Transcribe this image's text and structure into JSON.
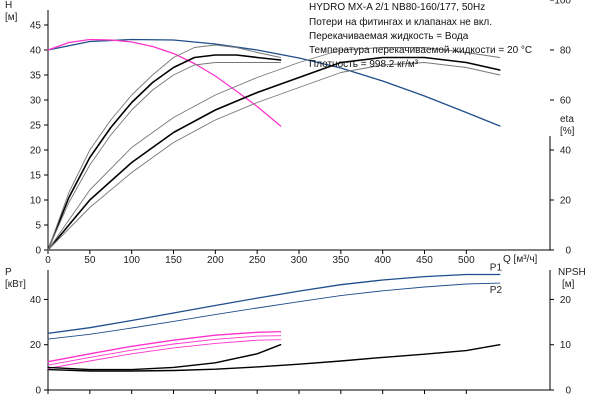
{
  "header": {
    "title": "HYDRO MX-A 2/1 NB80-160/177, 50Hz",
    "notes": [
      "Потери на фитингах и клапанах не вкл.",
      "Перекачиваемая жидкость = Вода",
      "Температура перекачиваемой жидкости = 20 °C",
      "Плотность = 998.2 кг/м³"
    ]
  },
  "colors": {
    "blue": "#1f4e8c",
    "magenta": "#ff33cc",
    "black": "#000000",
    "gray": "#777777"
  },
  "chart_data": [
    {
      "type": "line",
      "name": "top-panel",
      "x_label": "Q [м³/ч]",
      "x_ticks": [
        0,
        50,
        100,
        150,
        200,
        250,
        300,
        350,
        400,
        450,
        500
      ],
      "xlim": [
        0,
        600
      ],
      "left_axis": {
        "label_line1": "H",
        "label_line2": "[м]",
        "ticks": [
          0,
          5,
          10,
          15,
          20,
          25,
          30,
          35,
          40,
          45
        ],
        "lim": [
          0,
          50
        ]
      },
      "right_axis": {
        "label_line1": "eta",
        "label_line2": "[%]",
        "ticks": [
          0,
          20,
          40,
          60,
          80,
          100
        ],
        "lim": [
          0,
          100
        ]
      },
      "series": [
        {
          "axis": "left",
          "color": "blue",
          "width": 1.3,
          "x": [
            0,
            50,
            100,
            150,
            200,
            250,
            300,
            350,
            400,
            450,
            500,
            540
          ],
          "y": [
            40,
            41.7,
            42.1,
            42,
            41.2,
            40,
            38.4,
            36.4,
            33.8,
            30.8,
            27.5,
            24.8
          ]
        },
        {
          "axis": "left",
          "color": "magenta",
          "width": 1.3,
          "x": [
            0,
            25,
            50,
            75,
            100,
            125,
            150,
            175,
            200,
            225,
            250,
            278
          ],
          "y": [
            40,
            41.5,
            42.1,
            42,
            41.6,
            40.7,
            39.3,
            37.3,
            34.8,
            31.8,
            28.7,
            24.8
          ]
        },
        {
          "axis": "right",
          "color": "black",
          "width": 1.6,
          "x": [
            0,
            25,
            50,
            75,
            100,
            125,
            150,
            175,
            200,
            225,
            250,
            278
          ],
          "y": [
            0,
            21,
            37,
            49,
            59,
            67,
            73,
            77,
            78,
            78,
            77,
            76
          ]
        },
        {
          "axis": "right",
          "color": "gray",
          "width": 0.9,
          "x": [
            0,
            25,
            50,
            75,
            100,
            125,
            150,
            175,
            200,
            225,
            250,
            278
          ],
          "y": [
            0,
            23,
            40,
            52,
            62,
            70,
            77,
            81,
            82,
            81,
            79,
            77
          ]
        },
        {
          "axis": "right",
          "color": "gray",
          "width": 0.9,
          "x": [
            0,
            25,
            50,
            75,
            100,
            125,
            150,
            175,
            200,
            225,
            250,
            278
          ],
          "y": [
            0,
            19,
            34,
            46,
            56,
            64,
            70,
            74,
            75,
            75,
            75,
            75
          ]
        },
        {
          "axis": "right",
          "color": "black",
          "width": 1.6,
          "x": [
            0,
            50,
            100,
            150,
            200,
            250,
            300,
            350,
            400,
            450,
            500,
            540
          ],
          "y": [
            0,
            20,
            35,
            47,
            56,
            63,
            69,
            75,
            77,
            77,
            75,
            72
          ]
        },
        {
          "axis": "right",
          "color": "gray",
          "width": 0.9,
          "x": [
            0,
            50,
            100,
            150,
            200,
            250,
            300,
            350,
            400,
            450,
            500,
            540
          ],
          "y": [
            0,
            24,
            41,
            53,
            62,
            69,
            75,
            80,
            81,
            81,
            79,
            77
          ]
        },
        {
          "axis": "right",
          "color": "gray",
          "width": 0.9,
          "x": [
            0,
            50,
            100,
            150,
            200,
            250,
            300,
            350,
            400,
            450,
            500,
            540
          ],
          "y": [
            0,
            17,
            31,
            43,
            52,
            59,
            65,
            71,
            74,
            75,
            73,
            70
          ]
        }
      ]
    },
    {
      "type": "line",
      "name": "bottom-panel",
      "xlim": [
        0,
        600
      ],
      "left_axis": {
        "label_line1": "P",
        "label_line2": "[кВт]",
        "ticks": [
          0,
          20,
          40
        ],
        "lim": [
          0,
          53
        ]
      },
      "right_axis": {
        "label_line1": "NPSH",
        "label_line2": "[м]",
        "ticks": [
          0,
          10,
          20
        ],
        "lim": [
          0,
          26.5
        ]
      },
      "series": [
        {
          "axis": "left",
          "color": "blue",
          "width": 1.3,
          "label": "P1",
          "x": [
            0,
            50,
            100,
            150,
            200,
            250,
            300,
            350,
            400,
            450,
            500,
            540
          ],
          "y": [
            25,
            27.5,
            30.7,
            34,
            37.3,
            40.6,
            43.7,
            46.5,
            48.6,
            50.1,
            51,
            51
          ]
        },
        {
          "axis": "left",
          "color": "blue",
          "width": 0.9,
          "label": "P2",
          "x": [
            0,
            50,
            100,
            150,
            200,
            250,
            300,
            350,
            400,
            450,
            500,
            540
          ],
          "y": [
            22.5,
            24.6,
            27.4,
            30.3,
            33.3,
            36.2,
            39,
            41.7,
            43.8,
            45.5,
            46.8,
            47.2
          ]
        },
        {
          "axis": "left",
          "color": "magenta",
          "width": 1.3,
          "x": [
            0,
            50,
            100,
            150,
            200,
            250,
            278
          ],
          "y": [
            12.5,
            16,
            19.3,
            22,
            24.2,
            25.5,
            25.8
          ]
        },
        {
          "axis": "left",
          "color": "magenta",
          "width": 0.9,
          "x": [
            0,
            50,
            100,
            150,
            200,
            250,
            278
          ],
          "y": [
            11,
            14.4,
            17.6,
            20.3,
            22.4,
            23.8,
            24
          ]
        },
        {
          "axis": "left",
          "color": "magenta",
          "width": 0.9,
          "x": [
            0,
            50,
            100,
            150,
            200,
            250,
            278
          ],
          "y": [
            9.5,
            12.8,
            16,
            18.6,
            20.6,
            22,
            22.2
          ]
        },
        {
          "axis": "right",
          "color": "black",
          "width": 1.4,
          "x": [
            0,
            50,
            100,
            150,
            200,
            250,
            278
          ],
          "y": [
            5,
            4.5,
            4.5,
            5,
            6,
            8,
            10
          ]
        },
        {
          "axis": "right",
          "color": "black",
          "width": 1.4,
          "x": [
            0,
            50,
            100,
            150,
            200,
            250,
            300,
            350,
            400,
            450,
            500,
            540
          ],
          "y": [
            4.5,
            4.2,
            4.2,
            4.3,
            4.6,
            5.1,
            5.7,
            6.4,
            7.2,
            7.9,
            8.7,
            10
          ]
        }
      ]
    }
  ]
}
